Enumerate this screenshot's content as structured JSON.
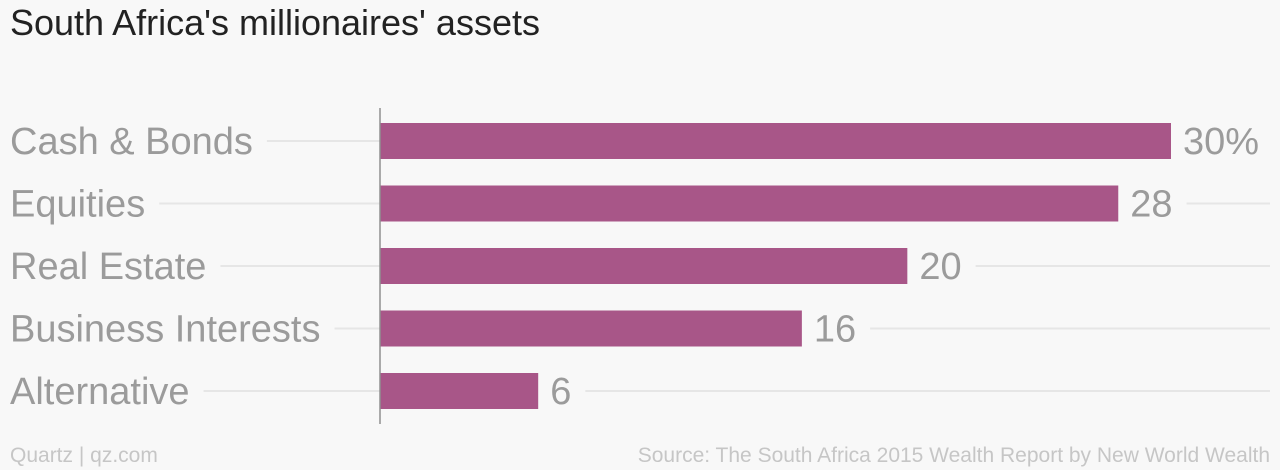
{
  "title": "South Africa's millionaires' assets",
  "footer": {
    "credit": "Quartz | qz.com",
    "source": "Source: The South Africa 2015 Wealth Report by New World Wealth"
  },
  "colors": {
    "bar": "#a85688",
    "label": "#9b9b9b",
    "gridline": "#e6e6e6",
    "axis": "#8f8f8f"
  },
  "chart_data": {
    "type": "bar",
    "orientation": "horizontal",
    "categories": [
      "Cash & Bonds",
      "Equities",
      "Real Estate",
      "Business Interests",
      "Alternative"
    ],
    "values": [
      30,
      28,
      20,
      16,
      6
    ],
    "value_labels": [
      "30%",
      "28",
      "20",
      "16",
      "6"
    ],
    "title": "South Africa's millionaires' assets",
    "unit": "%",
    "xlabel": "",
    "ylabel": "",
    "xlim": [
      0,
      30
    ],
    "grid": true,
    "legend": "none"
  }
}
